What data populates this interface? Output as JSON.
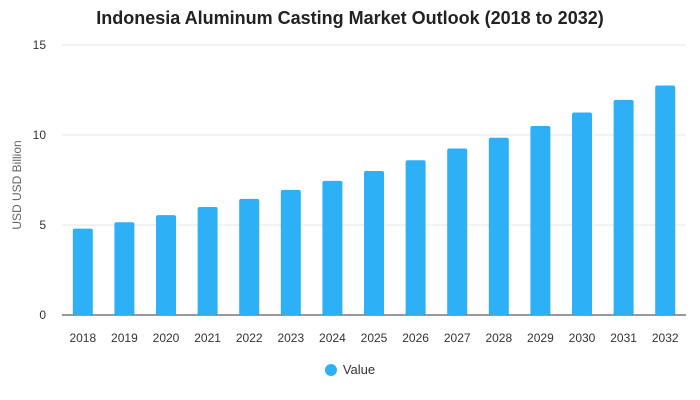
{
  "colors": {
    "bar": "#2eb0f7",
    "grid": "#e6e6e6",
    "axis": "#333333"
  },
  "chart_data": {
    "type": "bar",
    "title": "Indonesia Aluminum Casting Market Outlook (2018 to 2032)",
    "xlabel": "",
    "ylabel": "USD USD Billion",
    "ylim": [
      0,
      15
    ],
    "yticks": [
      "0",
      "5",
      "10",
      "15"
    ],
    "grid": true,
    "legend_position": "bottom",
    "categories": [
      "2018",
      "2019",
      "2020",
      "2021",
      "2022",
      "2023",
      "2024",
      "2025",
      "2026",
      "2027",
      "2028",
      "2029",
      "2030",
      "2031",
      "2032"
    ],
    "series": [
      {
        "name": "Value",
        "values": [
          4.8,
          5.15,
          5.55,
          6.0,
          6.45,
          6.95,
          7.45,
          8.0,
          8.6,
          9.25,
          9.85,
          10.5,
          11.25,
          11.95,
          12.75
        ]
      }
    ]
  }
}
